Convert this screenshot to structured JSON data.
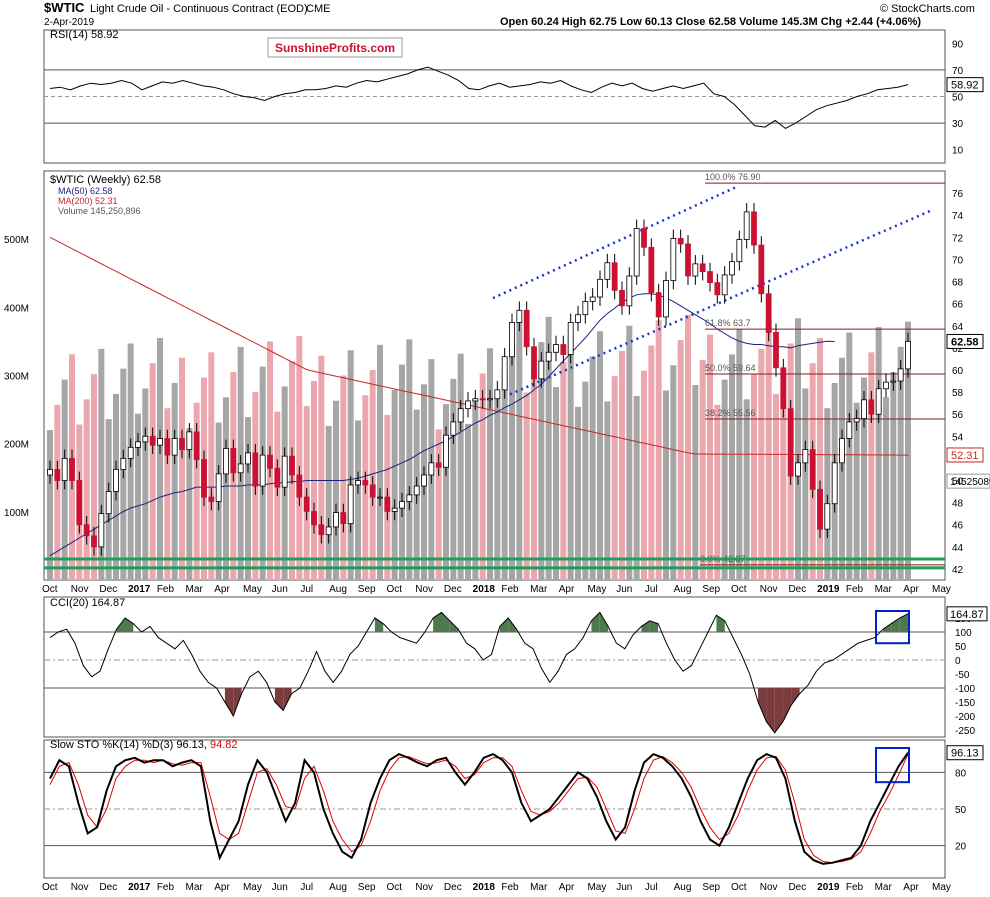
{
  "header": {
    "symbol": "$WTIC",
    "description": "Light Crude Oil - Continuous Contract (EOD)",
    "exchange": "CME",
    "date": "2-Apr-2019",
    "ohlc_text": "Open 60.24  High 62.75  Low 60.13  Close 62.58  Volume 145.3M  Chg +2.44 (+4.06%)",
    "copyright": "© StockCharts.com",
    "watermark": "SunshineProfits.com"
  },
  "colors": {
    "up_candle": "#ffffff",
    "down_candle": "#cc1133",
    "ma50": "#1a237e",
    "ma200": "#c62828",
    "trendline": "#1a33cc",
    "fib_line": "#8b1a1a",
    "support": "#1f9e5b",
    "vol_up": "#a6a6a6",
    "vol_down": "#eba7ad",
    "osc_pos_fill": "#4c7a4c",
    "osc_neg_fill": "#7a3c3c",
    "stoch_k": "#000000",
    "stoch_d": "#e00000",
    "highlight_box": "#0022cc"
  },
  "x_axis": {
    "labels": [
      "Oct",
      "Nov",
      "Dec",
      "2017",
      "Feb",
      "Mar",
      "Apr",
      "May",
      "Jun",
      "Jul",
      "Aug",
      "Sep",
      "Oct",
      "Nov",
      "Dec",
      "2018",
      "Feb",
      "Mar",
      "Apr",
      "May",
      "Jun",
      "Jul",
      "Aug",
      "Sep",
      "Oct",
      "Nov",
      "Dec",
      "2019",
      "Feb",
      "Mar",
      "Apr",
      "May"
    ],
    "bold": [
      "2017",
      "2018",
      "2019"
    ]
  },
  "chart_data": [
    {
      "type": "line",
      "panel": "rsi",
      "title": "RSI(14) 58.92",
      "last_value": "58.92",
      "ylim": [
        0,
        100
      ],
      "ticks": [
        10,
        30,
        50,
        70,
        90
      ],
      "levels": [
        30,
        70
      ],
      "values": [
        56,
        57,
        55,
        58,
        60,
        59,
        60,
        62,
        60,
        55,
        58,
        61,
        60,
        62,
        60,
        58,
        57,
        55,
        52,
        50,
        49,
        47,
        50,
        52,
        53,
        55,
        55,
        56,
        58,
        57,
        60,
        62,
        61,
        63,
        65,
        67,
        70,
        72,
        69,
        66,
        62,
        56,
        55,
        58,
        60,
        57,
        58,
        59,
        61,
        60,
        62,
        58,
        55,
        53,
        57,
        60,
        58,
        60,
        56,
        54,
        56,
        58,
        56,
        58,
        60,
        52,
        50,
        44,
        36,
        28,
        27,
        32,
        26,
        30,
        35,
        40,
        43,
        45,
        47,
        50,
        52,
        55,
        56,
        57,
        58.92
      ]
    },
    {
      "type": "candlestick",
      "panel": "price",
      "title": "$WTIC (Weekly) 62.58",
      "legend": [
        "MA(50) 62.58",
        "MA(200) 52.31",
        "Volume 145,250,896"
      ],
      "last_price": "62.58",
      "ylim": [
        41,
        78
      ],
      "ticks": [
        42,
        44,
        46,
        48,
        50,
        52,
        54,
        56,
        58,
        60,
        62,
        64,
        66,
        68,
        70,
        72,
        74,
        76
      ],
      "close": [
        51,
        50,
        52,
        50,
        46,
        45,
        44,
        47,
        49,
        51,
        52,
        53,
        53.5,
        54,
        53.2,
        53.8,
        52.3,
        53.8,
        52.8,
        54.4,
        51.9,
        48.5,
        48.1,
        50.6,
        52.9,
        50.7,
        51.5,
        52.5,
        49.5,
        52.3,
        51.1,
        49.4,
        52.2,
        50.5,
        48.5,
        47.2,
        46.0,
        45.1,
        45.8,
        47.1,
        46.1,
        49.6,
        50.0,
        49.6,
        48.5,
        48.5,
        47.2,
        47.5,
        48.1,
        48.7,
        49.5,
        50.5,
        51.6,
        51.2,
        54.1,
        55.3,
        56.5,
        57.2,
        57.4,
        57.3,
        57.4,
        58.2,
        61.2,
        64.3,
        65.4,
        62.1,
        59.2,
        60.8,
        61.6,
        62.3,
        61.4,
        64.3,
        65.0,
        66.2,
        66.6,
        68.2,
        69.7,
        67.2,
        65.8,
        68.5,
        72.8,
        71.1,
        67.0,
        64.8,
        68.1,
        71.9,
        71.4,
        68.5,
        69.6,
        68.9,
        67.9,
        66.8,
        68.6,
        69.8,
        71.8,
        74.3,
        71.3,
        66.9,
        63.4,
        60.2,
        56.5,
        50.4,
        51.6,
        52.8,
        49.2,
        45.6,
        47.9,
        51.6,
        53.8,
        55.3,
        55.6,
        57.3,
        56.0,
        58.3,
        58.9,
        59.0,
        60.1,
        62.58
      ],
      "ma50": [
        43.2,
        43.6,
        44.0,
        44.4,
        44.8,
        45.2,
        45.6,
        46.0,
        46.4,
        46.8,
        47.2,
        47.5,
        47.7,
        47.9,
        48.2,
        48.5,
        48.7,
        48.9,
        49.0,
        49.2,
        49.4,
        49.4,
        49.4,
        49.4,
        49.5,
        49.5,
        49.5,
        49.6,
        49.6,
        49.6,
        49.7,
        49.8,
        49.8,
        49.9,
        49.9,
        50.0,
        50.0,
        50.0,
        50.0,
        50.0,
        50.0,
        50.1,
        50.2,
        50.4,
        50.6,
        50.8,
        51.0,
        51.3,
        51.6,
        51.9,
        52.3,
        52.7,
        53.0,
        53.3,
        53.6,
        54.0,
        54.4,
        54.8,
        55.2,
        55.5,
        55.9,
        56.2,
        56.6,
        56.9,
        57.3,
        57.7,
        58.2,
        58.7,
        59.4,
        60.1,
        60.8,
        61.5,
        62.2,
        62.9,
        63.7,
        64.5,
        65.1,
        65.6,
        66.1,
        66.5,
        66.8,
        66.9,
        66.9,
        66.8,
        66.5,
        66.2,
        65.8,
        65.4,
        65.0,
        64.6,
        64.2,
        63.7,
        63.3,
        62.9,
        62.6,
        62.4,
        62.3,
        62.3,
        62.2,
        62.1,
        62.1,
        62.0,
        62.2,
        62.3,
        62.4,
        62.5,
        62.6,
        62.58
      ]
    },
    {
      "type": "bar",
      "panel": "volume",
      "title": "Volume 145,250,896",
      "last_value": "145250896",
      "ticks": [
        "100M",
        "200M",
        "300M",
        "400M",
        "500M"
      ]
    },
    {
      "type": "line",
      "panel": "price_annotations",
      "fib_labels": [
        "100.0% 76.90",
        "61.8% 63.7",
        "50.0% 59.64",
        "38.2% 55.56",
        "0.0% 42.37"
      ],
      "fib_values": [
        76.9,
        63.7,
        59.64,
        55.56,
        42.37
      ],
      "ma200_label": "52.31"
    },
    {
      "type": "line",
      "panel": "cci",
      "title": "CCI(20) 164.87",
      "last_value": "164.87",
      "ylim": [
        -275,
        225
      ],
      "ticks": [
        150,
        100,
        50,
        0,
        -50,
        -100,
        -150,
        -200,
        -250
      ],
      "levels": [
        100,
        -100
      ],
      "values": [
        80,
        100,
        110,
        60,
        -20,
        -60,
        -40,
        40,
        110,
        150,
        130,
        100,
        120,
        80,
        60,
        40,
        70,
        20,
        -40,
        -80,
        -100,
        -150,
        -200,
        -120,
        -60,
        -40,
        -80,
        -150,
        -180,
        -120,
        -100,
        -40,
        30,
        -40,
        -80,
        -40,
        20,
        50,
        100,
        150,
        130,
        100,
        80,
        70,
        60,
        100,
        150,
        170,
        140,
        110,
        60,
        40,
        0,
        20,
        120,
        150,
        110,
        60,
        40,
        -30,
        -80,
        -40,
        20,
        40,
        80,
        140,
        170,
        120,
        60,
        40,
        90,
        120,
        140,
        130,
        60,
        0,
        -40,
        -20,
        40,
        100,
        160,
        140,
        80,
        20,
        -50,
        -150,
        -220,
        -260,
        -220,
        -160,
        -120,
        -90,
        -40,
        -10,
        0,
        20,
        40,
        60,
        70,
        80,
        110,
        130,
        150,
        164.87
      ]
    },
    {
      "type": "line",
      "panel": "stochastic",
      "title": "Slow STO %K(14) %D(3) 96.13, 94.82",
      "legend": [
        "96.13",
        "94.82"
      ],
      "last_value": "96.13",
      "ylim": [
        0,
        100
      ],
      "ticks": [
        20,
        50,
        80
      ],
      "levels": [
        20,
        50,
        80
      ],
      "k": [
        75,
        90,
        85,
        55,
        30,
        35,
        65,
        85,
        90,
        92,
        88,
        90,
        90,
        85,
        88,
        90,
        85,
        40,
        10,
        25,
        40,
        70,
        90,
        80,
        60,
        40,
        55,
        90,
        80,
        50,
        30,
        15,
        10,
        25,
        55,
        75,
        90,
        95,
        92,
        88,
        85,
        90,
        92,
        80,
        70,
        80,
        92,
        95,
        90,
        80,
        55,
        40,
        45,
        50,
        60,
        70,
        80,
        75,
        60,
        40,
        25,
        35,
        65,
        88,
        95,
        92,
        85,
        75,
        60,
        40,
        25,
        20,
        35,
        55,
        75,
        90,
        95,
        92,
        75,
        40,
        15,
        8,
        5,
        6,
        8,
        10,
        20,
        40,
        55,
        70,
        85,
        96.13
      ],
      "d": [
        70,
        85,
        88,
        70,
        45,
        35,
        50,
        75,
        85,
        90,
        90,
        88,
        90,
        87,
        86,
        88,
        88,
        60,
        30,
        25,
        30,
        55,
        80,
        83,
        70,
        52,
        50,
        75,
        85,
        65,
        40,
        25,
        15,
        20,
        40,
        65,
        82,
        92,
        93,
        90,
        87,
        88,
        90,
        85,
        75,
        78,
        88,
        92,
        92,
        85,
        65,
        48,
        45,
        48,
        55,
        65,
        75,
        76,
        68,
        50,
        32,
        30,
        50,
        75,
        90,
        93,
        88,
        80,
        68,
        50,
        35,
        25,
        30,
        45,
        65,
        82,
        92,
        93,
        82,
        55,
        25,
        12,
        7,
        6,
        7,
        9,
        15,
        30,
        48,
        62,
        78,
        94.82
      ]
    }
  ]
}
